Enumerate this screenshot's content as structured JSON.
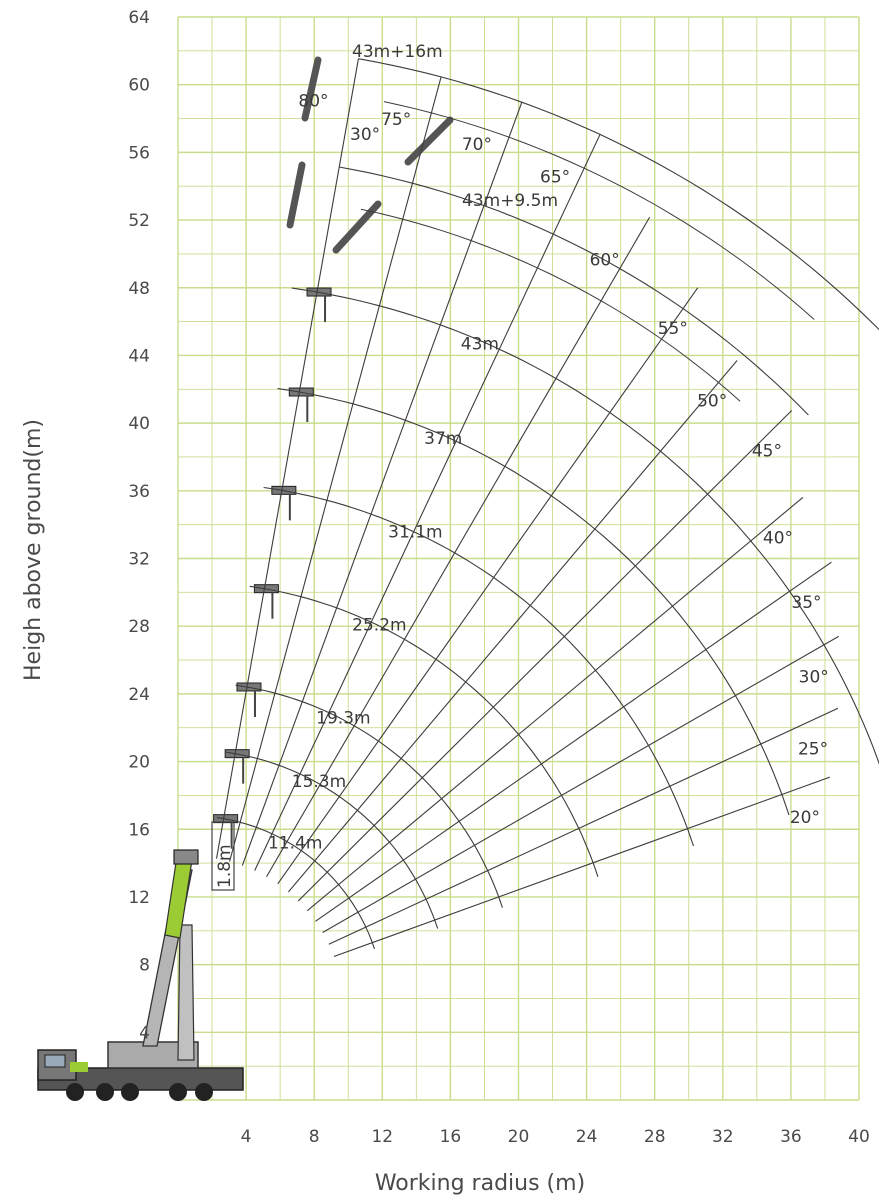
{
  "chart_data": {
    "type": "line",
    "title": "",
    "xlabel": "Working radius (m)",
    "ylabel": "Heigh above ground(m)",
    "xlim": [
      0,
      40
    ],
    "ylim": [
      0,
      64
    ],
    "x_ticks": [
      "4",
      "8",
      "12",
      "16",
      "20",
      "24",
      "28",
      "32",
      "36",
      "40"
    ],
    "y_ticks": [
      "4",
      "8",
      "12",
      "16",
      "20",
      "24",
      "28",
      "32",
      "36",
      "40",
      "44",
      "48",
      "52",
      "56",
      "60",
      "64"
    ],
    "grid": true,
    "grid_color": "#c8dd8c",
    "line_color": "#3c3c3c",
    "boom_pivot": [
      0.7,
      5.4
    ],
    "angle_lines": [
      {
        "label": "80°",
        "angle": 80,
        "length": 57
      },
      {
        "label": "75°",
        "angle": 75,
        "length": 57
      },
      {
        "label": "70°",
        "angle": 70,
        "length": 57
      },
      {
        "label": "65°",
        "angle": 65,
        "length": 57
      },
      {
        "label": "60°",
        "angle": 60,
        "length": 54
      },
      {
        "label": "55°",
        "angle": 55,
        "length": 52
      },
      {
        "label": "50°",
        "angle": 50,
        "length": 50
      },
      {
        "label": "45°",
        "angle": 45,
        "length": 50
      },
      {
        "label": "40°",
        "angle": 40,
        "length": 47
      },
      {
        "label": "35°",
        "angle": 35,
        "length": 46
      },
      {
        "label": "30°",
        "angle": 30,
        "length": 44
      },
      {
        "label": "25°",
        "angle": 25,
        "length": 42
      },
      {
        "label": "20°",
        "angle": 20,
        "length": 40
      }
    ],
    "boom_lengths": [
      {
        "label": "11.4m",
        "radius": 11.4
      },
      {
        "label": "15.3m",
        "radius": 15.3
      },
      {
        "label": "19.3m",
        "radius": 19.3
      },
      {
        "label": "25.2m",
        "radius": 25.2
      },
      {
        "label": "31.1m",
        "radius": 31.1
      },
      {
        "label": "37m",
        "radius": 37
      },
      {
        "label": "43m",
        "radius": 43
      }
    ],
    "jib_configs": [
      {
        "label": "43m+9.5m",
        "radius": 50.5
      },
      {
        "label": "43m+16m",
        "radius": 57
      }
    ],
    "jib_angle_label": "30°",
    "jib_offset_label": "1.8m"
  }
}
